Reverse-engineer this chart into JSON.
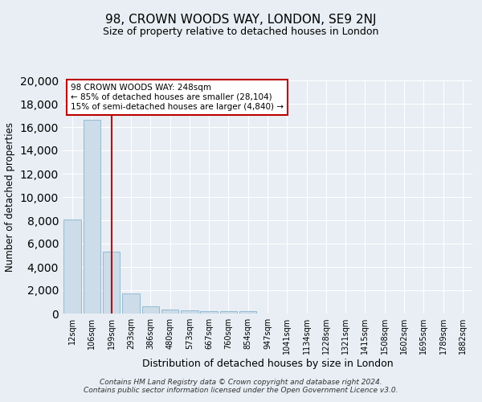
{
  "title": "98, CROWN WOODS WAY, LONDON, SE9 2NJ",
  "subtitle": "Size of property relative to detached houses in London",
  "xlabel": "Distribution of detached houses by size in London",
  "ylabel": "Number of detached properties",
  "bar_color": "#ccdce8",
  "bar_edge_color": "#7aaac8",
  "vline_color": "#bb0000",
  "vline_x_idx": 2,
  "categories": [
    "12sqm",
    "106sqm",
    "199sqm",
    "293sqm",
    "386sqm",
    "480sqm",
    "573sqm",
    "667sqm",
    "760sqm",
    "854sqm",
    "947sqm",
    "1041sqm",
    "1134sqm",
    "1228sqm",
    "1321sqm",
    "1415sqm",
    "1508sqm",
    "1602sqm",
    "1695sqm",
    "1789sqm",
    "1882sqm"
  ],
  "values": [
    8100,
    16600,
    5300,
    1750,
    650,
    350,
    270,
    230,
    200,
    175,
    0,
    0,
    0,
    0,
    0,
    0,
    0,
    0,
    0,
    0,
    0
  ],
  "ylim": [
    0,
    20000
  ],
  "yticks": [
    0,
    2000,
    4000,
    6000,
    8000,
    10000,
    12000,
    14000,
    16000,
    18000,
    20000
  ],
  "annotation_text": "98 CROWN WOODS WAY: 248sqm\n← 85% of detached houses are smaller (28,104)\n15% of semi-detached houses are larger (4,840) →",
  "footer_text": "Contains HM Land Registry data © Crown copyright and database right 2024.\nContains public sector information licensed under the Open Government Licence v3.0.",
  "background_color": "#e8eef4",
  "plot_background": "#e8eef4",
  "grid_color": "#ffffff"
}
